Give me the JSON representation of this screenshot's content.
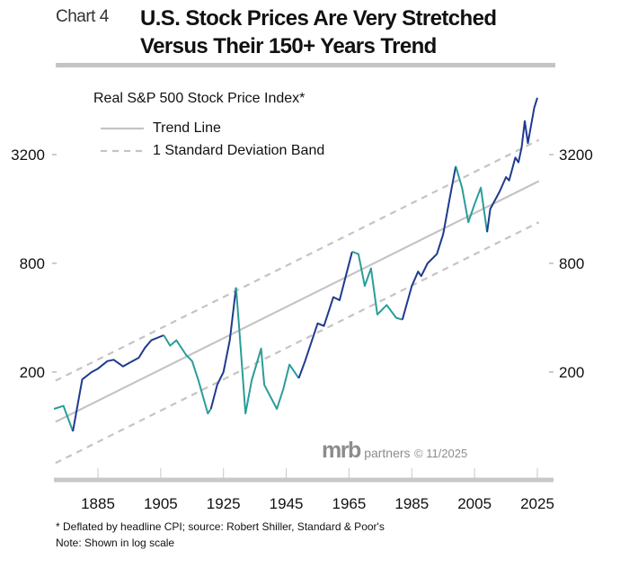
{
  "header": {
    "chart_number": "Chart 4",
    "title_line1": "U.S. Stock Prices Are Very Stretched",
    "title_line2": "Versus Their 150+ Years Trend"
  },
  "branding": {
    "logo": "mrb",
    "logo_suffix": "partners",
    "copyright": "© 11/2025"
  },
  "footnotes": {
    "line1": "* Deflated by headline CPI; source: Robert Shiller, Standard & Poor's",
    "line2": "Note: Shown in log scale"
  },
  "colors": {
    "bull": "#1f3a8f",
    "bear": "#2a9d98",
    "trend": "#c4c4c4",
    "axis": "#c8c8c8"
  },
  "chart_data": {
    "type": "line",
    "title": "Real S&P 500 Stock Price Index*",
    "legend": [
      {
        "label": "Trend Line",
        "style": "solid"
      },
      {
        "label": "1 Standard Deviation Band",
        "style": "dashed"
      }
    ],
    "legend_placement": "top-left",
    "y_scale": "log",
    "ylim": [
      55,
      8000
    ],
    "xlim": [
      1871,
      2027
    ],
    "y_ticks": [
      200,
      800,
      3200
    ],
    "x_ticks": [
      1885,
      1905,
      1925,
      1945,
      1965,
      1985,
      2005,
      2025
    ],
    "grid": false,
    "series": [
      {
        "points": [
          [
            1871,
            125
          ],
          [
            1874,
            130
          ],
          [
            1877,
            94
          ],
          [
            1880,
            182
          ],
          [
            1883,
            200
          ],
          [
            1885,
            209
          ],
          [
            1888,
            230
          ],
          [
            1890,
            234
          ],
          [
            1893,
            215
          ],
          [
            1895,
            225
          ],
          [
            1898,
            240
          ],
          [
            1900,
            273
          ],
          [
            1902,
            300
          ],
          [
            1906,
            320
          ],
          [
            1908,
            280
          ],
          [
            1910,
            300
          ],
          [
            1913,
            250
          ],
          [
            1915,
            230
          ],
          [
            1917,
            180
          ],
          [
            1920,
            118
          ],
          [
            1921,
            125
          ],
          [
            1923,
            170
          ],
          [
            1925,
            200
          ],
          [
            1927,
            300
          ],
          [
            1929,
            588
          ],
          [
            1930,
            350
          ],
          [
            1932,
            118
          ],
          [
            1934,
            180
          ],
          [
            1937,
            270
          ],
          [
            1938,
            170
          ],
          [
            1942,
            125
          ],
          [
            1944,
            160
          ],
          [
            1946,
            220
          ],
          [
            1949,
            185
          ],
          [
            1951,
            230
          ],
          [
            1955,
            372
          ],
          [
            1957,
            360
          ],
          [
            1960,
            520
          ],
          [
            1962,
            500
          ],
          [
            1966,
            928
          ],
          [
            1968,
            900
          ],
          [
            1970,
            600
          ],
          [
            1972,
            750
          ],
          [
            1974,
            417
          ],
          [
            1977,
            470
          ],
          [
            1980,
            400
          ],
          [
            1982,
            390
          ],
          [
            1985,
            600
          ],
          [
            1987,
            720
          ],
          [
            1988,
            680
          ],
          [
            1990,
            800
          ],
          [
            1993,
            900
          ],
          [
            1995,
            1160
          ],
          [
            1997,
            1800
          ],
          [
            1999,
            2760
          ],
          [
            2001,
            2100
          ],
          [
            2003,
            1350
          ],
          [
            2005,
            1700
          ],
          [
            2007,
            2100
          ],
          [
            2009,
            1190
          ],
          [
            2010,
            1600
          ],
          [
            2013,
            2000
          ],
          [
            2015,
            2400
          ],
          [
            2016,
            2300
          ],
          [
            2018,
            3080
          ],
          [
            2019,
            2900
          ],
          [
            2020,
            3500
          ],
          [
            2021,
            4900
          ],
          [
            2022,
            3700
          ],
          [
            2024,
            5800
          ],
          [
            2025,
            6600
          ]
        ]
      }
    ],
    "phases": [
      {
        "from": 1871,
        "to": 1877,
        "tone": "bear"
      },
      {
        "from": 1877,
        "to": 1906,
        "tone": "bull"
      },
      {
        "from": 1906,
        "to": 1921,
        "tone": "bear"
      },
      {
        "from": 1921,
        "to": 1929,
        "tone": "bull"
      },
      {
        "from": 1929,
        "to": 1949,
        "tone": "bear"
      },
      {
        "from": 1949,
        "to": 1966,
        "tone": "bull"
      },
      {
        "from": 1966,
        "to": 1982,
        "tone": "bear"
      },
      {
        "from": 1982,
        "to": 1999,
        "tone": "bull"
      },
      {
        "from": 1999,
        "to": 2009,
        "tone": "bear"
      },
      {
        "from": 2009,
        "to": 2025,
        "tone": "bull"
      }
    ],
    "trend": {
      "start": [
        1871,
        105
      ],
      "end": [
        2025,
        2260
      ],
      "band_factor": 1.69
    }
  }
}
